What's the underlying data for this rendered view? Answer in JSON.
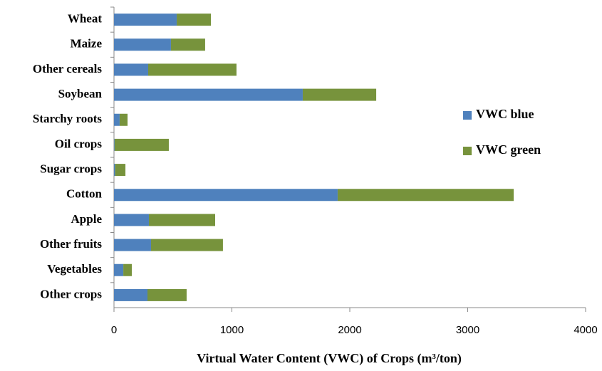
{
  "chart_data": {
    "type": "stacked-barh",
    "x_label": "Virtual Water Content (VWC) of Crops (m³/ton)",
    "categories": [
      "Wheat",
      "Maize",
      "Other cereals",
      "Soybean",
      "Starchy roots",
      "Oil crops",
      "Sugar crops",
      "Cotton",
      "Apple",
      "Other fruits",
      "Vegetables",
      "Other crops"
    ],
    "series": [
      {
        "name": "VWC blue",
        "color": "#4f81bd",
        "values": [
          532,
          483,
          290,
          1601,
          48,
          5,
          10,
          1897,
          296,
          314,
          79,
          284
        ]
      },
      {
        "name": "VWC green",
        "color": "#77933c",
        "values": [
          290,
          290,
          749,
          623,
          67,
          460,
          87,
          1493,
          562,
          610,
          72,
          332
        ]
      }
    ],
    "xlim": [
      0,
      4000
    ],
    "xticks": [
      0,
      1000,
      2000,
      3000,
      4000
    ],
    "legend": "right"
  }
}
